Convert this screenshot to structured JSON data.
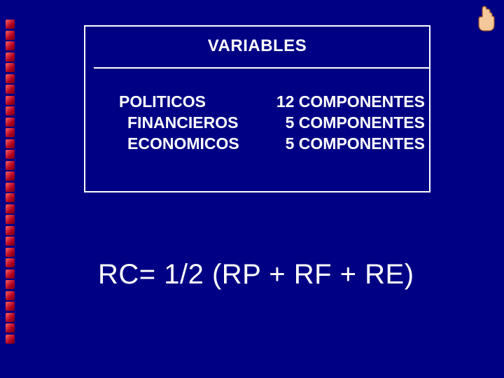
{
  "slide": {
    "background_color": "#000084",
    "text_color": "#ffffff",
    "box_border_color": "#ffffff",
    "bullet_color_start": "#ff6060",
    "bullet_color_end": "#700018",
    "bullet_count": 30
  },
  "variables_box": {
    "title": "VARIABLES",
    "left_column": {
      "row1": "POLITICOS",
      "row2": "FINANCIEROS",
      "row3": "ECONOMICOS"
    },
    "right_column": {
      "row1": "12 COMPONENTES",
      "row2": "5 COMPONENTES",
      "row3": "5 COMPONENTES"
    }
  },
  "formula": "RC= 1/2 (RP + RF + RE)",
  "icon": {
    "name": "hand-pointing-up"
  }
}
